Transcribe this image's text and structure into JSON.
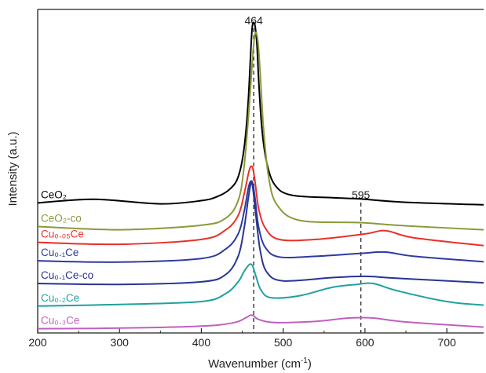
{
  "chart_data": {
    "type": "line",
    "title": "",
    "xlabel": "Wavenumber (cm⁻¹)",
    "ylabel": "Intensity (a.u.)",
    "xlim": [
      200,
      745
    ],
    "ylim": [
      0,
      100
    ],
    "x_ticks": [
      200,
      300,
      400,
      500,
      600,
      700
    ],
    "y_ticks_shown": false,
    "grid": false,
    "legend": "inline labels at left of each curve",
    "peak_markers": [
      {
        "x": 464,
        "label": "464"
      },
      {
        "x": 595,
        "label": "595"
      }
    ],
    "series": [
      {
        "name": "CeO₂",
        "color": "#000000",
        "points": [
          [
            200,
            40.2
          ],
          [
            270,
            41.3
          ],
          [
            350,
            39.9
          ],
          [
            400,
            40.9
          ],
          [
            420,
            42.2
          ],
          [
            435,
            44.5
          ],
          [
            445,
            48.2
          ],
          [
            452,
            56.6
          ],
          [
            457,
            70.3
          ],
          [
            460,
            85.0
          ],
          [
            462,
            94.1
          ],
          [
            464,
            96.0
          ],
          [
            466,
            94.4
          ],
          [
            468,
            88.9
          ],
          [
            470,
            78.5
          ],
          [
            474,
            63.2
          ],
          [
            480,
            52.6
          ],
          [
            490,
            45.7
          ],
          [
            510,
            42.6
          ],
          [
            560,
            41.8
          ],
          [
            595,
            41.4
          ],
          [
            650,
            40.4
          ],
          [
            745,
            39.6
          ]
        ]
      },
      {
        "name": "CeO₂-co",
        "color": "#8a9a3a",
        "points": [
          [
            200,
            32.9
          ],
          [
            300,
            31.9
          ],
          [
            400,
            33.3
          ],
          [
            430,
            35.5
          ],
          [
            445,
            40.9
          ],
          [
            452,
            50.8
          ],
          [
            458,
            68.4
          ],
          [
            463,
            86.4
          ],
          [
            466,
            92.7
          ],
          [
            469,
            90.3
          ],
          [
            472,
            80.0
          ],
          [
            476,
            63.2
          ],
          [
            482,
            48.6
          ],
          [
            492,
            39.8
          ],
          [
            520,
            34.8
          ],
          [
            595,
            34.1
          ],
          [
            650,
            33.1
          ],
          [
            745,
            31.9
          ]
        ]
      },
      {
        "name": "Cu₀.₀₅Ce",
        "color": "#e8302a",
        "points": [
          [
            200,
            28.0
          ],
          [
            300,
            27.4
          ],
          [
            400,
            28.9
          ],
          [
            430,
            31.9
          ],
          [
            445,
            36.3
          ],
          [
            452,
            42.6
          ],
          [
            457,
            48.6
          ],
          [
            460,
            51.3
          ],
          [
            463,
            50.8
          ],
          [
            466,
            46.1
          ],
          [
            470,
            38.5
          ],
          [
            478,
            32.5
          ],
          [
            495,
            28.9
          ],
          [
            540,
            28.9
          ],
          [
            600,
            30.6
          ],
          [
            625,
            31.6
          ],
          [
            660,
            29.4
          ],
          [
            745,
            27.0
          ]
        ]
      },
      {
        "name": "Cu₀.₁Ce",
        "color": "#2e3a9e",
        "points": [
          [
            200,
            22.3
          ],
          [
            300,
            21.9
          ],
          [
            400,
            23.0
          ],
          [
            430,
            26.0
          ],
          [
            445,
            30.6
          ],
          [
            452,
            37.1
          ],
          [
            457,
            44.2
          ],
          [
            460,
            46.8
          ],
          [
            463,
            46.1
          ],
          [
            466,
            40.9
          ],
          [
            470,
            32.8
          ],
          [
            478,
            26.5
          ],
          [
            495,
            23.5
          ],
          [
            540,
            23.7
          ],
          [
            595,
            24.6
          ],
          [
            625,
            25.0
          ],
          [
            660,
            23.7
          ],
          [
            745,
            22.0
          ]
        ]
      },
      {
        "name": "Cu₀.₁Ce-co",
        "color": "#283593",
        "points": [
          [
            200,
            15.3
          ],
          [
            300,
            15.0
          ],
          [
            400,
            15.8
          ],
          [
            430,
            18.1
          ],
          [
            445,
            23.7
          ],
          [
            452,
            31.9
          ],
          [
            457,
            40.9
          ],
          [
            460,
            45.7
          ],
          [
            462,
            46.1
          ],
          [
            464,
            42.6
          ],
          [
            467,
            35.5
          ],
          [
            472,
            25.4
          ],
          [
            480,
            18.8
          ],
          [
            500,
            16.1
          ],
          [
            560,
            17.1
          ],
          [
            600,
            17.5
          ],
          [
            640,
            16.9
          ],
          [
            745,
            15.5
          ]
        ]
      },
      {
        "name": "Cu₀.₂Ce",
        "color": "#20a0a0",
        "points": [
          [
            200,
            8.3
          ],
          [
            300,
            8.8
          ],
          [
            400,
            9.7
          ],
          [
            430,
            12.2
          ],
          [
            445,
            15.8
          ],
          [
            452,
            18.9
          ],
          [
            457,
            20.7
          ],
          [
            460,
            21.3
          ],
          [
            463,
            20.5
          ],
          [
            467,
            17.3
          ],
          [
            473,
            13.2
          ],
          [
            485,
            10.9
          ],
          [
            520,
            11.5
          ],
          [
            560,
            14.1
          ],
          [
            590,
            15.0
          ],
          [
            610,
            15.3
          ],
          [
            640,
            13.0
          ],
          [
            700,
            9.7
          ],
          [
            745,
            8.6
          ]
        ]
      },
      {
        "name": "Cu₀.₃Ce",
        "color": "#c060c0",
        "points": [
          [
            200,
            1.3
          ],
          [
            300,
            1.5
          ],
          [
            400,
            2.1
          ],
          [
            440,
            3.2
          ],
          [
            455,
            4.8
          ],
          [
            460,
            5.5
          ],
          [
            464,
            5.3
          ],
          [
            470,
            4.2
          ],
          [
            490,
            3.2
          ],
          [
            540,
            3.6
          ],
          [
            580,
            4.6
          ],
          [
            610,
            4.6
          ],
          [
            650,
            3.4
          ],
          [
            745,
            1.8
          ]
        ]
      }
    ]
  }
}
